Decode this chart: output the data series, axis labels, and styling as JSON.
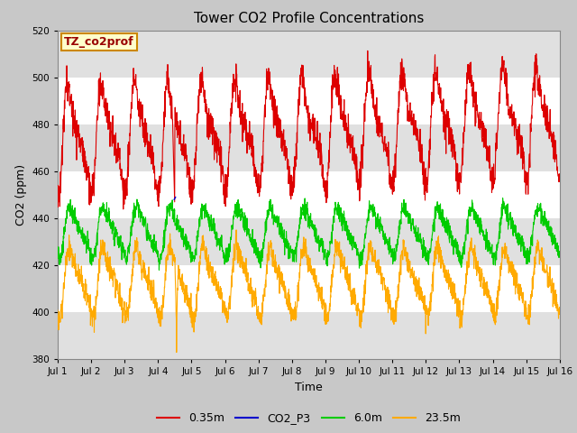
{
  "title": "Tower CO2 Profile Concentrations",
  "xlabel": "Time",
  "ylabel": "CO2 (ppm)",
  "ylim": [
    380,
    520
  ],
  "yticks": [
    380,
    400,
    420,
    440,
    460,
    480,
    500,
    520
  ],
  "fig_bg": "#c8c8c8",
  "plot_bg": "#ffffff",
  "stripe_color": "#e0e0e0",
  "legend_label": "TZ_co2prof",
  "legend_bg": "#ffffcc",
  "legend_border": "#cc8800",
  "colors": {
    "red": "#dd0000",
    "blue": "#0000cc",
    "green": "#00cc00",
    "orange": "#ffaa00"
  },
  "n_days": 15,
  "pts_per_day": 144,
  "red_base": 473,
  "red_amp": 18,
  "green_base": 434,
  "green_amp": 9,
  "orange_base": 413,
  "orange_amp": 12,
  "spike_day": 3.55
}
